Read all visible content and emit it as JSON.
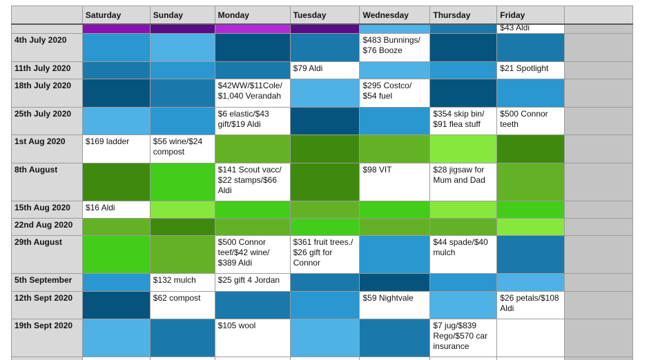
{
  "header": {
    "corner": "",
    "days": [
      "Saturday",
      "Sunday",
      "Monday",
      "Tuesday",
      "Wednesday",
      "Thursday",
      "Friday"
    ],
    "extra": ""
  },
  "colors": {
    "purple": "#8a10b0",
    "dark_purple": "#5a0c86",
    "violet": "#b02ad8",
    "blue_mid": "#2a97d0",
    "blue_light": "#4fb1e4",
    "blue_dark": "#06547e",
    "blue_steel": "#1b78aa",
    "green_dark": "#3f8a0e",
    "green_bright": "#44cc1b",
    "green_mid": "#63b226",
    "green_lime": "#86e83c",
    "white": "#ffffff",
    "grey": "#c4c4c4"
  },
  "partial_row": {
    "label": "",
    "cells": [
      {
        "color": "purple",
        "text": ""
      },
      {
        "color": "dark_purple",
        "text": ""
      },
      {
        "color": "violet",
        "text": ""
      },
      {
        "color": "dark_purple",
        "text": ""
      },
      {
        "color": "blue_light",
        "text": ""
      },
      {
        "color": "blue_steel",
        "text": ""
      },
      {
        "color": "white",
        "text": "$43 Aldi"
      }
    ]
  },
  "rows": [
    {
      "label": "4th July 2020",
      "cells": [
        {
          "color": "blue_mid",
          "text": ""
        },
        {
          "color": "blue_light",
          "text": ""
        },
        {
          "color": "blue_dark",
          "text": ""
        },
        {
          "color": "blue_steel",
          "text": ""
        },
        {
          "color": "white",
          "text": "$483 Bunnings/\n$76 Booze"
        },
        {
          "color": "blue_dark",
          "text": ""
        },
        {
          "color": "blue_steel",
          "text": ""
        }
      ]
    },
    {
      "label": "11th July 2020",
      "cells": [
        {
          "color": "blue_steel",
          "text": ""
        },
        {
          "color": "blue_mid",
          "text": ""
        },
        {
          "color": "blue_steel",
          "text": ""
        },
        {
          "color": "white",
          "text": "$79 Aldi"
        },
        {
          "color": "blue_light",
          "text": ""
        },
        {
          "color": "blue_mid",
          "text": ""
        },
        {
          "color": "white",
          "text": "$21 Spotlight"
        }
      ]
    },
    {
      "label": "18th July 2020",
      "cells": [
        {
          "color": "blue_dark",
          "text": ""
        },
        {
          "color": "blue_steel",
          "text": ""
        },
        {
          "color": "white",
          "text": "$42WW/$11Cole/\n$1,040 Verandah"
        },
        {
          "color": "blue_light",
          "text": ""
        },
        {
          "color": "white",
          "text": "$295 Costco/\n$54 fuel"
        },
        {
          "color": "blue_dark",
          "text": ""
        },
        {
          "color": "blue_mid",
          "text": ""
        }
      ]
    },
    {
      "label": "25th July 2020",
      "cells": [
        {
          "color": "blue_light",
          "text": ""
        },
        {
          "color": "blue_mid",
          "text": ""
        },
        {
          "color": "white",
          "text": "$6 elastic/$43\ngift/$19 Aldi"
        },
        {
          "color": "blue_dark",
          "text": ""
        },
        {
          "color": "blue_mid",
          "text": ""
        },
        {
          "color": "white",
          "text": "$354 skip bin/\n$91 flea stuff"
        },
        {
          "color": "white",
          "text": "$500 Connor\nteeth"
        }
      ]
    },
    {
      "label": "1st Aug 2020",
      "cells": [
        {
          "color": "white",
          "text": "$169 ladder"
        },
        {
          "color": "white",
          "text": "$56 wine/$24\ncompost"
        },
        {
          "color": "green_mid",
          "text": ""
        },
        {
          "color": "green_dark",
          "text": ""
        },
        {
          "color": "green_mid",
          "text": ""
        },
        {
          "color": "green_lime",
          "text": ""
        },
        {
          "color": "green_dark",
          "text": ""
        }
      ]
    },
    {
      "label": "8th August",
      "cells": [
        {
          "color": "green_dark",
          "text": ""
        },
        {
          "color": "green_bright",
          "text": ""
        },
        {
          "color": "white",
          "text": "$141 Scout vacc/\n$22 stamps/$66\nAldi"
        },
        {
          "color": "green_dark",
          "text": ""
        },
        {
          "color": "white",
          "text": "$98 VIT"
        },
        {
          "color": "white",
          "text": "$28 jigsaw for\nMum and Dad"
        },
        {
          "color": "green_mid",
          "text": ""
        }
      ]
    },
    {
      "label": "15th Aug 2020",
      "cells": [
        {
          "color": "white",
          "text": "$16 Aldi"
        },
        {
          "color": "green_lime",
          "text": ""
        },
        {
          "color": "green_bright",
          "text": ""
        },
        {
          "color": "green_mid",
          "text": ""
        },
        {
          "color": "green_bright",
          "text": ""
        },
        {
          "color": "green_lime",
          "text": ""
        },
        {
          "color": "green_bright",
          "text": ""
        }
      ]
    },
    {
      "label": "22nd Aug  2020",
      "cells": [
        {
          "color": "green_mid",
          "text": ""
        },
        {
          "color": "green_dark",
          "text": ""
        },
        {
          "color": "green_mid",
          "text": ""
        },
        {
          "color": "green_bright",
          "text": ""
        },
        {
          "color": "green_mid",
          "text": ""
        },
        {
          "color": "green_mid",
          "text": ""
        },
        {
          "color": "green_lime",
          "text": ""
        }
      ]
    },
    {
      "label": "29th August",
      "cells": [
        {
          "color": "green_bright",
          "text": ""
        },
        {
          "color": "green_mid",
          "text": ""
        },
        {
          "color": "white",
          "text": "$500 Connor\nteef/$42 wine/\n$389 Aldi"
        },
        {
          "color": "white",
          "text": "$361 fruit trees./\n$26 gift for\nConnor"
        },
        {
          "color": "blue_mid",
          "text": ""
        },
        {
          "color": "white",
          "text": "$44 spade/$40\nmulch"
        },
        {
          "color": "blue_steel",
          "text": ""
        }
      ]
    },
    {
      "label": "5th September",
      "cells": [
        {
          "color": "blue_mid",
          "text": ""
        },
        {
          "color": "white",
          "text": "$132 mulch"
        },
        {
          "color": "white",
          "text": "$25 gift 4 Jordan"
        },
        {
          "color": "blue_steel",
          "text": ""
        },
        {
          "color": "blue_dark",
          "text": ""
        },
        {
          "color": "blue_mid",
          "text": ""
        },
        {
          "color": "blue_light",
          "text": ""
        }
      ]
    },
    {
      "label": "12th Sept 2020",
      "cells": [
        {
          "color": "blue_dark",
          "text": ""
        },
        {
          "color": "white",
          "text": "$62 compost"
        },
        {
          "color": "blue_steel",
          "text": ""
        },
        {
          "color": "blue_mid",
          "text": ""
        },
        {
          "color": "white",
          "text": "$59 Nightvale"
        },
        {
          "color": "blue_light",
          "text": ""
        },
        {
          "color": "white",
          "text": "$26 petals/$108\nAldi"
        }
      ]
    },
    {
      "label": "19th Sept 2020",
      "cells": [
        {
          "color": "blue_light",
          "text": ""
        },
        {
          "color": "blue_steel",
          "text": ""
        },
        {
          "color": "white",
          "text": "$105 wool"
        },
        {
          "color": "blue_light",
          "text": ""
        },
        {
          "color": "blue_steel",
          "text": ""
        },
        {
          "color": "white",
          "text": "$7 jug/$839\nRego/$570 car\ninsurance"
        },
        {
          "color": "white",
          "text": ""
        }
      ]
    },
    {
      "label": "",
      "cells": [
        {
          "color": "white",
          "text": ""
        },
        {
          "color": "white",
          "text": ""
        },
        {
          "color": "white",
          "text": ""
        },
        {
          "color": "white",
          "text": ""
        },
        {
          "color": "white",
          "text": ""
        },
        {
          "color": "white",
          "text": ""
        },
        {
          "color": "white",
          "text": ""
        }
      ]
    }
  ]
}
